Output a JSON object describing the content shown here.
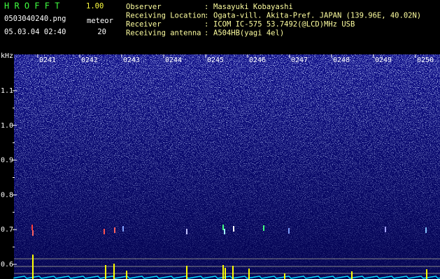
{
  "app": {
    "name": "H R O F F T",
    "version": "1.00"
  },
  "file": "0503040240.png",
  "timestamp": "05.03.04 02:40",
  "meteor": {
    "label": "meteor",
    "count": "20"
  },
  "separator": ":",
  "info": [
    {
      "label": "Observer",
      "value": "Masayuki Kobayashi"
    },
    {
      "label": "Receiving Location",
      "value": "Ogata-vill. Akita-Pref. JAPAN (139.96E, 40.02N)"
    },
    {
      "label": "Receiver",
      "value": "ICOM IC-575 53.7492(@LCD)MHz USB"
    },
    {
      "label": "Receiving antenna",
      "value": "A504HB(yagi 4el)"
    }
  ],
  "spectrogram": {
    "unit": "kHz",
    "frequency_labels": [
      "1.1",
      "1.0",
      "0.9",
      "0.8",
      "0.7",
      "0.6"
    ],
    "time_labels": [
      "0241",
      "0242",
      "0243",
      "0244",
      "0245",
      "0246",
      "0247",
      "0248",
      "0249",
      "0250"
    ]
  }
}
